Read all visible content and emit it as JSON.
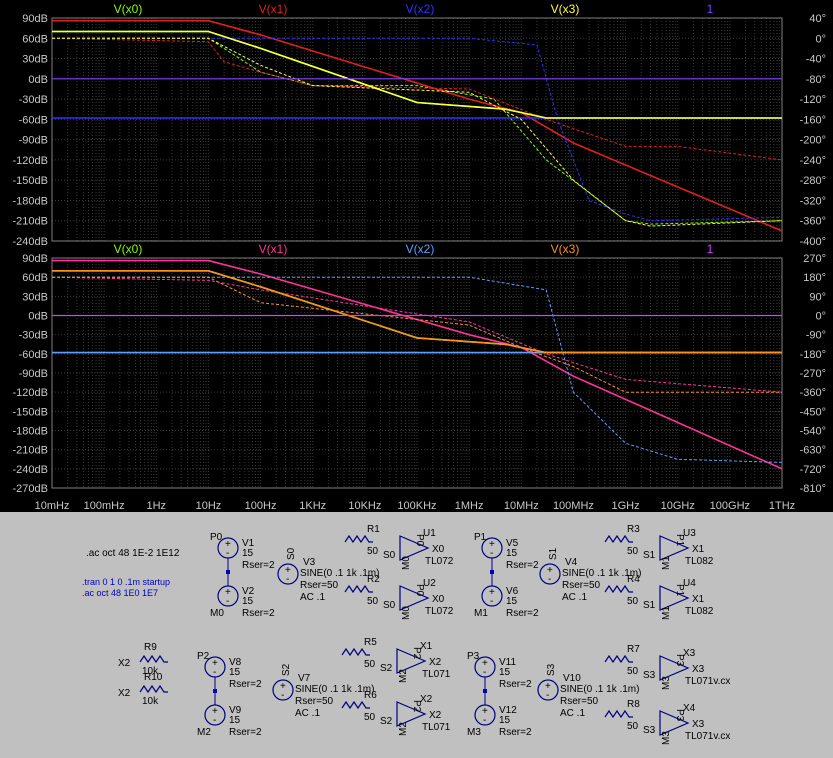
{
  "colors": {
    "bg": "#000000",
    "grid": "#3a3a3a",
    "axis_text": "#c8c8c8",
    "green": "#7fff00",
    "red": "#e02020",
    "blue": "#3030ff",
    "yellow": "#ffff40",
    "purple": "#8040ff",
    "pink": "#ff3399",
    "lightblue": "#5aa0ff",
    "orange": "#ff9020",
    "magenta": "#d040ff",
    "schematic_bg": "#c0c0c0",
    "wire": "#000080"
  },
  "chart_data": [
    {
      "type": "line",
      "title": "",
      "x_scale": "log",
      "xlim": [
        "10mHz",
        "1THz"
      ],
      "ylim": [
        -240,
        90
      ],
      "ylabel_left_ticks": [
        "90dB",
        "60dB",
        "30dB",
        "0dB",
        "-30dB",
        "-60dB",
        "-90dB",
        "-120dB",
        "-150dB",
        "-180dB",
        "-210dB",
        "-240dB"
      ],
      "ylabel_right_ticks": [
        "40°",
        "0°",
        "-40°",
        "-80°",
        "-120°",
        "-160°",
        "-200°",
        "-240°",
        "-280°",
        "-320°",
        "-360°",
        "-400°"
      ],
      "series": [
        {
          "name": "V(x0)",
          "color": "green",
          "magnitude_db": [
            [
              0.01,
              70
            ],
            [
              10,
              70
            ],
            [
              100,
              45
            ],
            [
              100000.0,
              -35
            ],
            [
              5000000.0,
              -45
            ],
            [
              30000000.0,
              -58
            ],
            [
              1000000000000.0,
              -58
            ]
          ],
          "phase_db_scale": [
            [
              0.01,
              60
            ],
            [
              10,
              60
            ],
            [
              100,
              10
            ],
            [
              1000.0,
              -10
            ],
            [
              100000.0,
              -10
            ],
            [
              3000000.0,
              -30
            ],
            [
              30000000.0,
              -120
            ],
            [
              1000000000.0,
              -210
            ],
            [
              3000000000.0,
              -215
            ],
            [
              1000000000000.0,
              -210
            ]
          ]
        },
        {
          "name": "V(x1)",
          "color": "red",
          "magnitude_db": [
            [
              0.01,
              86
            ],
            [
              10,
              86
            ],
            [
              100,
              65
            ],
            [
              1000000.0,
              -30
            ],
            [
              10000000.0,
              -50
            ],
            [
              100000000.0,
              -95
            ],
            [
              1000000000000.0,
              -225
            ]
          ],
          "phase_db_scale": [
            [
              0.01,
              60
            ],
            [
              10,
              55
            ],
            [
              20,
              25
            ],
            [
              100,
              10
            ],
            [
              1000.0,
              -10
            ],
            [
              1000000.0,
              -15
            ],
            [
              30000000.0,
              -60
            ],
            [
              1000000000.0,
              -100
            ],
            [
              10000000000.0,
              -100
            ],
            [
              1000000000000.0,
              -120
            ]
          ]
        },
        {
          "name": "V(x2)",
          "color": "blue",
          "magnitude_db": [
            [
              0.01,
              -58
            ],
            [
              1000000000000.0,
              -58
            ]
          ],
          "phase_db_scale": [
            [
              0.01,
              60
            ],
            [
              1000000.0,
              60
            ],
            [
              20000000.0,
              50
            ],
            [
              50000000.0,
              -60
            ],
            [
              200000000.0,
              -180
            ],
            [
              1000000000.0,
              -200
            ],
            [
              3000000000.0,
              -210
            ],
            [
              1000000000000.0,
              -205
            ]
          ]
        },
        {
          "name": "V(x3)",
          "color": "yellow",
          "magnitude_db": [
            [
              0.01,
              70
            ],
            [
              10,
              70
            ],
            [
              100,
              45
            ],
            [
              100000.0,
              -35
            ],
            [
              5000000.0,
              -45
            ],
            [
              30000000.0,
              -58
            ],
            [
              1000000000000.0,
              -58
            ]
          ],
          "phase_db_scale": [
            [
              0.01,
              60
            ],
            [
              10,
              60
            ],
            [
              100,
              20
            ],
            [
              1000.0,
              -10
            ],
            [
              1000000.0,
              -20
            ],
            [
              10000000.0,
              -60
            ],
            [
              100000000.0,
              -150
            ],
            [
              1000000000.0,
              -210
            ],
            [
              3000000000.0,
              -218
            ],
            [
              1000000000000.0,
              -210
            ]
          ]
        },
        {
          "name": "1",
          "color": "purple",
          "magnitude_db": [
            [
              0.01,
              0
            ],
            [
              1000000000000.0,
              0
            ]
          ]
        }
      ]
    },
    {
      "type": "line",
      "title": "",
      "x_scale": "log",
      "xlim": [
        "10mHz",
        "1THz"
      ],
      "x_ticks": [
        "10mHz",
        "100mHz",
        "1Hz",
        "10Hz",
        "100Hz",
        "1KHz",
        "10KHz",
        "100KHz",
        "1MHz",
        "10MHz",
        "100MHz",
        "1GHz",
        "10GHz",
        "100GHz",
        "1THz"
      ],
      "ylim": [
        -270,
        90
      ],
      "ylabel_left_ticks": [
        "90dB",
        "60dB",
        "30dB",
        "0dB",
        "-30dB",
        "-60dB",
        "-90dB",
        "-120dB",
        "-150dB",
        "-180dB",
        "-210dB",
        "-240dB",
        "-270dB"
      ],
      "ylabel_right_ticks": [
        "270°",
        "180°",
        "90°",
        "0°",
        "-90°",
        "-180°",
        "-270°",
        "-360°",
        "-450°",
        "-540°",
        "-630°",
        "-720°",
        "-810°"
      ],
      "series": [
        {
          "name": "V(x0)",
          "color": "green",
          "magnitude_db": [
            [
              0.01,
              70
            ],
            [
              10,
              70
            ],
            [
              100,
              45
            ],
            [
              100000.0,
              -35
            ],
            [
              5000000.0,
              -45
            ],
            [
              30000000.0,
              -58
            ],
            [
              1000000000000.0,
              -58
            ]
          ]
        },
        {
          "name": "V(x1)",
          "color": "pink",
          "magnitude_db": [
            [
              0.01,
              86
            ],
            [
              10,
              86
            ],
            [
              100,
              65
            ],
            [
              1000000.0,
              -30
            ],
            [
              10000000.0,
              -50
            ],
            [
              100000000.0,
              -95
            ],
            [
              1000000000000.0,
              -240
            ]
          ],
          "phase_db_scale": [
            [
              0.01,
              60
            ],
            [
              10,
              55
            ],
            [
              100,
              40
            ],
            [
              1000000.0,
              -10
            ],
            [
              30000000.0,
              -60
            ],
            [
              1000000000.0,
              -100
            ],
            [
              1000000000000.0,
              -120
            ]
          ]
        },
        {
          "name": "V(x2)",
          "color": "lightblue",
          "magnitude_db": [
            [
              0.01,
              -58
            ],
            [
              1000000000000.0,
              -58
            ]
          ],
          "phase_db_scale": [
            [
              0.01,
              60
            ],
            [
              1000000.0,
              60
            ],
            [
              30000000.0,
              40
            ],
            [
              100000000.0,
              -120
            ],
            [
              1000000000.0,
              -200
            ],
            [
              10000000000.0,
              -225
            ],
            [
              1000000000000.0,
              -230
            ]
          ]
        },
        {
          "name": "V(x3)",
          "color": "orange",
          "magnitude_db": [
            [
              0.01,
              70
            ],
            [
              10,
              70
            ],
            [
              100,
              45
            ],
            [
              100000.0,
              -35
            ],
            [
              5000000.0,
              -45
            ],
            [
              30000000.0,
              -58
            ],
            [
              1000000000000.0,
              -58
            ]
          ],
          "phase_db_scale": [
            [
              0.01,
              60
            ],
            [
              10,
              60
            ],
            [
              100,
              20
            ],
            [
              1000000.0,
              -15
            ],
            [
              10000000.0,
              -50
            ],
            [
              100000000.0,
              -80
            ],
            [
              1000000000.0,
              -120
            ],
            [
              1000000000000.0,
              -120
            ]
          ]
        },
        {
          "name": "1",
          "color": "magenta",
          "magnitude_db": [
            [
              0.01,
              0
            ],
            [
              1000000000000.0,
              0
            ]
          ]
        }
      ]
    }
  ],
  "schematic": {
    "directives": {
      "ac1": ".ac oct 48 1E-2 1E12",
      "tran": ".tran 0 1 0 .1m startup",
      "ac2": ".ac oct 48 1E0 1E7"
    },
    "supplies": [
      {
        "p": "P0",
        "m": "M0",
        "v1": "V1",
        "v2": "V2",
        "val": "15",
        "rser": "Rser=2"
      },
      {
        "p": "P1",
        "m": "M1",
        "v1": "V5",
        "v2": "V6",
        "val": "15",
        "rser": "Rser=2"
      },
      {
        "p": "P2",
        "m": "M2",
        "v1": "V8",
        "v2": "V9",
        "val": "15",
        "rser": "Rser=2"
      },
      {
        "p": "P3",
        "m": "M3",
        "v1": "V11",
        "v2": "V12",
        "val": "15",
        "rser": "Rser=2"
      }
    ],
    "sources": [
      {
        "name": "V3",
        "node": "S0",
        "sine": "SINE(0 .1 1k .1m)",
        "rser": "Rser=50",
        "ac": "AC .1"
      },
      {
        "name": "V4",
        "node": "S1",
        "sine": "SINE(0 .1 1k .1m)",
        "rser": "Rser=50",
        "ac": "AC .1"
      },
      {
        "name": "V7",
        "node": "S2",
        "sine": "SINE(0 .1 1k .1m)",
        "rser": "Rser=50",
        "ac": "AC .1"
      },
      {
        "name": "V10",
        "node": "S3",
        "sine": "SINE(0 .1 1k .1m)",
        "rser": "Rser=50",
        "ac": "AC .1"
      }
    ],
    "amps": [
      {
        "res": "R1",
        "rv": "50",
        "in": "S0",
        "u": "U1",
        "pin": "P0",
        "m": "M0",
        "out": "X0",
        "model": "TL072"
      },
      {
        "res": "R2",
        "rv": "50",
        "in": "S0",
        "u": "U2",
        "pin": "P0",
        "m": "M0",
        "out": "X0",
        "model": "TL072"
      },
      {
        "res": "R3",
        "rv": "50",
        "in": "S1",
        "u": "U3",
        "pin": "P1",
        "m": "M1",
        "out": "X1",
        "model": "TL082"
      },
      {
        "res": "R4",
        "rv": "50",
        "in": "S1",
        "u": "U4",
        "pin": "P1",
        "m": "M1",
        "out": "X1",
        "model": "TL082"
      },
      {
        "res": "R5",
        "rv": "50",
        "in": "S2",
        "u": "X1",
        "pin": "P2",
        "m": "M2",
        "out": "X2",
        "model": "TL071"
      },
      {
        "res": "R6",
        "rv": "50",
        "in": "S2",
        "u": "X2",
        "pin": "P2",
        "m": "M2",
        "out": "X2",
        "model": "TL071"
      },
      {
        "res": "R7",
        "rv": "50",
        "in": "S3",
        "u": "X3",
        "pin": "P3",
        "m": "M3",
        "out": "X3",
        "model": "TL071v.cx"
      },
      {
        "res": "R8",
        "rv": "50",
        "in": "S3",
        "u": "X4",
        "pin": "P3",
        "m": "M3",
        "out": "X3",
        "model": "TL071v.cx"
      }
    ],
    "loads": [
      {
        "name": "R9",
        "val": "10k",
        "node": "X2"
      },
      {
        "name": "R10",
        "val": "10k",
        "node": "X2"
      }
    ]
  }
}
